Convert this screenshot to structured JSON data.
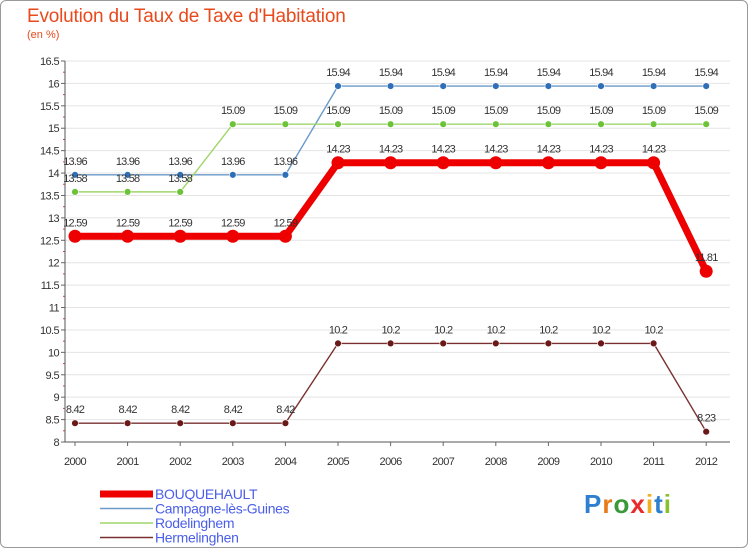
{
  "title": "Evolution du Taux de Taxe d'Habitation",
  "subtitle": "(en %)",
  "logo": {
    "text": "Proxiti",
    "letter_colors": [
      "#2f7fd0",
      "#e87a1a",
      "#3a9a3a",
      "#e82a2a",
      "#f0b020",
      "#2f7fd0",
      "#8ac030"
    ]
  },
  "chart_data": {
    "type": "line",
    "title": "Evolution du Taux de Taxe d'Habitation",
    "ylabel": "(en %)",
    "xlabel": "",
    "ylim": [
      8,
      16.5
    ],
    "yticks": [
      "8",
      "8.5",
      "9",
      "9.5",
      "10",
      "10.5",
      "11",
      "11.5",
      "12",
      "12.5",
      "13",
      "13.5",
      "14",
      "14.5",
      "15",
      "15.5",
      "16",
      "16.5"
    ],
    "categories": [
      "2000",
      "2001",
      "2002",
      "2003",
      "2004",
      "2005",
      "2006",
      "2007",
      "2008",
      "2009",
      "2010",
      "2011",
      "2012"
    ],
    "series": [
      {
        "name": "Campagne-lès-Guines",
        "color": "#6a9ac8",
        "marker": "#2f6fb8",
        "values": [
          13.96,
          13.96,
          13.96,
          13.96,
          13.96,
          15.94,
          15.94,
          15.94,
          15.94,
          15.94,
          15.94,
          15.94,
          15.94
        ],
        "labels": [
          "13.96",
          "13.96",
          "13.96",
          "13.96",
          "13.96",
          "15.94",
          "15.94",
          "15.94",
          "15.94",
          "15.94",
          "15.94",
          "15.94",
          "15.94"
        ]
      },
      {
        "name": "Rodelinghem",
        "color": "#9ed66a",
        "marker": "#6cc238",
        "values": [
          13.58,
          13.58,
          13.58,
          15.09,
          15.09,
          15.09,
          15.09,
          15.09,
          15.09,
          15.09,
          15.09,
          15.09,
          15.09
        ],
        "labels": [
          "13.58",
          "13.58",
          "13.58",
          "15.09",
          "15.09",
          "15.09",
          "15.09",
          "15.09",
          "15.09",
          "15.09",
          "15.09",
          "15.09",
          "15.09"
        ]
      },
      {
        "name": "Hermelinghen",
        "color": "#7a3030",
        "marker": "#6a1818",
        "values": [
          8.42,
          8.42,
          8.42,
          8.42,
          8.42,
          10.2,
          10.2,
          10.2,
          10.2,
          10.2,
          10.2,
          10.2,
          8.23
        ],
        "labels": [
          "8.42",
          "8.42",
          "8.42",
          "8.42",
          "8.42",
          "10.2",
          "10.2",
          "10.2",
          "10.2",
          "10.2",
          "10.2",
          "10.2",
          "8.23"
        ]
      },
      {
        "name": "BOUQUEHAULT",
        "color": "#ee0000",
        "marker": "#ee0000",
        "values": [
          12.59,
          12.59,
          12.59,
          12.59,
          12.59,
          14.23,
          14.23,
          14.23,
          14.23,
          14.23,
          14.23,
          14.23,
          11.81
        ],
        "labels": [
          "12.59",
          "12.59",
          "12.59",
          "12.59",
          "12.59",
          "14.23",
          "14.23",
          "14.23",
          "14.23",
          "14.23",
          "14.23",
          "14.23",
          "11.81"
        ]
      }
    ],
    "legend": [
      "BOUQUEHAULT",
      "Campagne-lès-Guines",
      "Rodelinghem",
      "Hermelinghen"
    ]
  }
}
